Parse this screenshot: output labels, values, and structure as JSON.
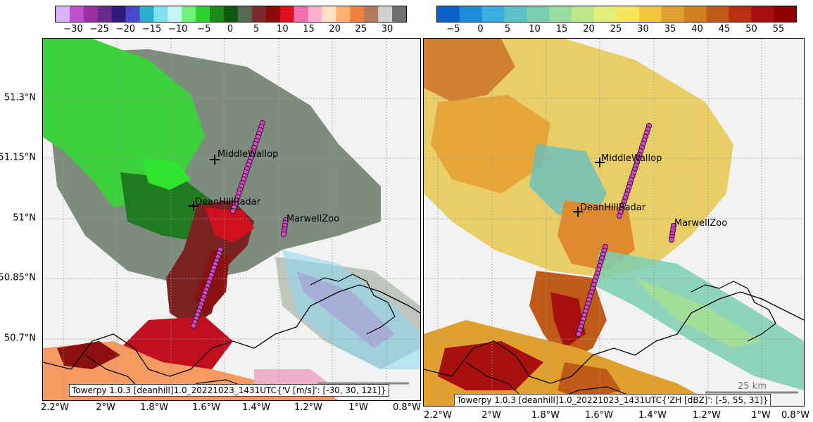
{
  "colorbars": [
    {
      "ticks": [
        "−30",
        "−25",
        "−20",
        "−15",
        "−10",
        "−5",
        "0",
        "5",
        "10",
        "15",
        "20",
        "25",
        "30"
      ],
      "colors": [
        "#d9b3ff",
        "#c050d0",
        "#9b30a0",
        "#6a2a8a",
        "#2d1a7a",
        "#4848c8",
        "#2aaed0",
        "#7fe0f0",
        "#c8f5f5",
        "#6ef07a",
        "#2ed02e",
        "#1a8a1a",
        "#0f5a0f",
        "#566a56",
        "#7a2a2a",
        "#8c0a0a",
        "#e01020",
        "#f070b0",
        "#ffb0d0",
        "#ffe0c0",
        "#ffb070",
        "#f08040",
        "#b07a60",
        "#d0d0d0",
        "#707070"
      ]
    },
    {
      "ticks": [
        "−5",
        "0",
        "5",
        "10",
        "15",
        "20",
        "25",
        "30",
        "35",
        "40",
        "45",
        "50",
        "55"
      ],
      "colors": [
        "#0a64c8",
        "#1a8cd8",
        "#3aaee0",
        "#5cc0c8",
        "#7ccfb0",
        "#9adda0",
        "#bfe88a",
        "#e4ef78",
        "#f5e560",
        "#f0c840",
        "#e0a030",
        "#d08020",
        "#c05a18",
        "#b83010",
        "#a81010",
        "#900000"
      ]
    }
  ],
  "panels": [
    {
      "y_ticks": [
        "51.3°N",
        "51.15°N",
        "51°N",
        "50.85°N",
        "50.7°N"
      ],
      "x_ticks": [
        "2.2°W",
        "2°W",
        "1.8°W",
        "1.6°W",
        "1.4°W",
        "1.2°W",
        "1°W",
        "0.8°W"
      ],
      "places": [
        "MiddleWallop",
        "DeanHillRadar",
        "MarwellZoo"
      ],
      "run_label": "Towerpy 1.0.3  [deanhill]1.0_20221023_1431UTC{'V [m/s]': [-30, 30, 121]}"
    },
    {
      "y_ticks": [],
      "x_ticks": [
        "2.2°W",
        "2°W",
        "1.8°W",
        "1.6°W",
        "1.4°W",
        "1.2°W",
        "1°W",
        "0.8°W"
      ],
      "places": [
        "MiddleWallop",
        "DeanHillRadar",
        "MarwellZoo"
      ],
      "run_label": "Towerpy 1.0.3  [deanhill]1.0_20221023_1431UTC{'ZH [dBZ]': [-5, 55, 31]}",
      "scale_bar": "25 km"
    }
  ]
}
